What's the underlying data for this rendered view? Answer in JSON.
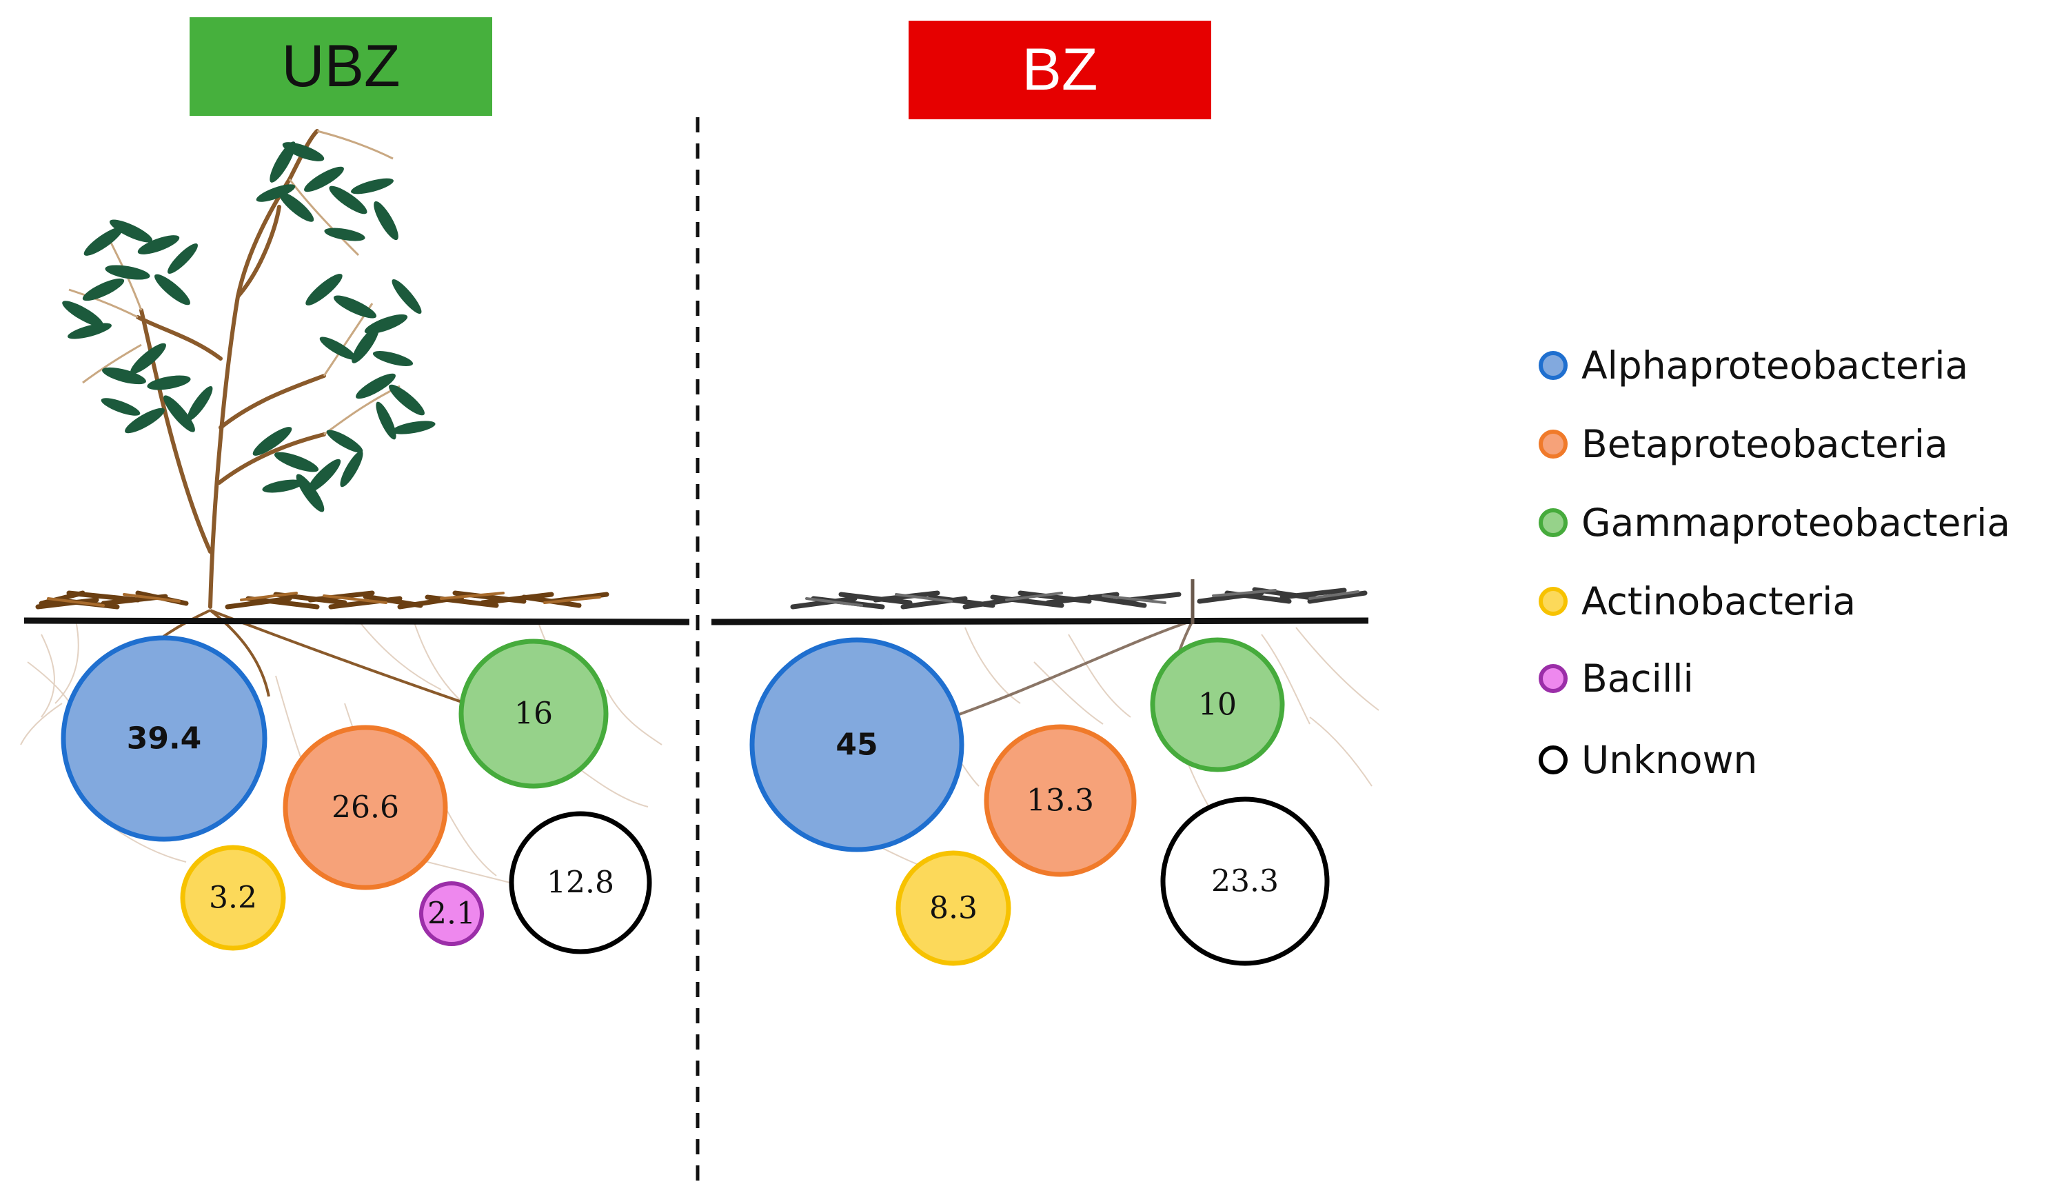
{
  "zones": {
    "left": {
      "label": "UBZ",
      "color": "#46b03d"
    },
    "right": {
      "label": "BZ",
      "color": "#e60000"
    }
  },
  "legend": [
    {
      "label": "Alphaproteobacteria",
      "fill": "#82a9de",
      "stroke": "#1f6fcf"
    },
    {
      "label": "Betaproteobacteria",
      "fill": "#f6a279",
      "stroke": "#f07a2a"
    },
    {
      "label": "Gammaproteobacteria",
      "fill": "#96d28a",
      "stroke": "#46ab3c"
    },
    {
      "label": "Actinobacteria",
      "fill": "#fcd95a",
      "stroke": "#f7c200"
    },
    {
      "label": "Bacilli",
      "fill": "#ee88ee",
      "stroke": "#9b2ea8"
    },
    {
      "label": "Unknown",
      "fill": "#ffffff",
      "stroke": "#000000"
    }
  ],
  "ubz_values": [
    {
      "class": "Alphaproteobacteria",
      "value": "39.4"
    },
    {
      "class": "Betaproteobacteria",
      "value": "26.6"
    },
    {
      "class": "Gammaproteobacteria",
      "value": "16"
    },
    {
      "class": "Actinobacteria",
      "value": "3.2"
    },
    {
      "class": "Bacilli",
      "value": "2.1"
    },
    {
      "class": "Unknown",
      "value": "12.8"
    }
  ],
  "bz_values": [
    {
      "class": "Alphaproteobacteria",
      "value": "45"
    },
    {
      "class": "Betaproteobacteria",
      "value": "13.3"
    },
    {
      "class": "Gammaproteobacteria",
      "value": "10"
    },
    {
      "class": "Actinobacteria",
      "value": "8.3"
    },
    {
      "class": "Unknown",
      "value": "23.3"
    }
  ]
}
